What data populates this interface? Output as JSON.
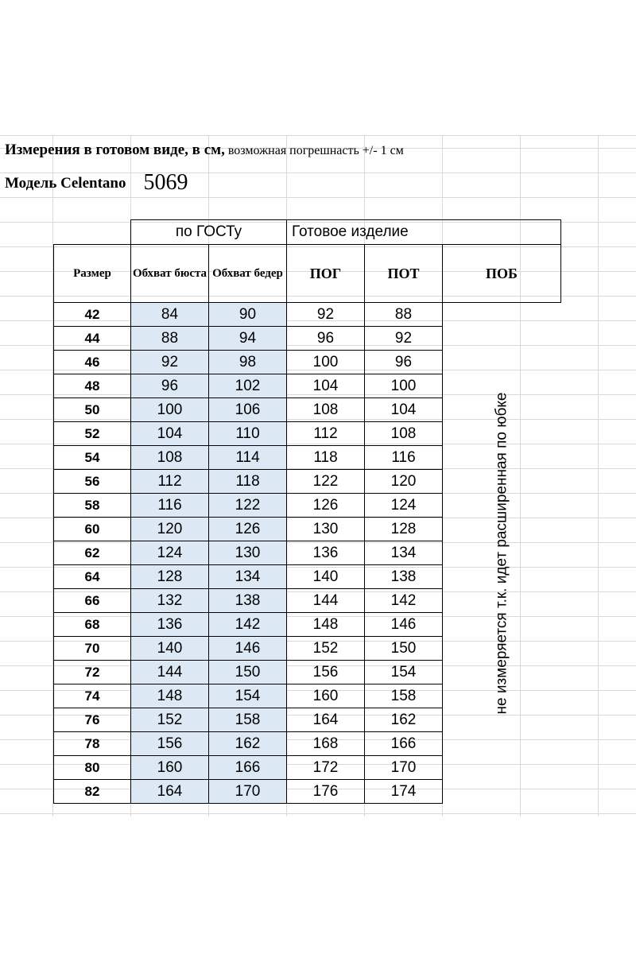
{
  "title_line1": {
    "main": "Измерения в готовом виде, в  см,",
    "note": "возможная погрешнасть +/- 1 см"
  },
  "title_line2": {
    "model": "Модель Celentano",
    "number": "5069"
  },
  "table": {
    "group_gost": "по ГОСТу",
    "group_ready": "Готовое изделие",
    "headers": {
      "size": "Размер",
      "bust": "Обхват бюста",
      "hips": "Обхват бедер",
      "pog": "ПОГ",
      "pot": "ПОТ",
      "pob": "ПОБ"
    },
    "pob_note": "не измеряется т.к. идет расширенная по юбке",
    "rows": [
      {
        "size": "42",
        "bust": "84",
        "hips": "90",
        "pog": "92",
        "pot": "88"
      },
      {
        "size": "44",
        "bust": "88",
        "hips": "94",
        "pog": "96",
        "pot": "92"
      },
      {
        "size": "46",
        "bust": "92",
        "hips": "98",
        "pog": "100",
        "pot": "96"
      },
      {
        "size": "48",
        "bust": "96",
        "hips": "102",
        "pog": "104",
        "pot": "100"
      },
      {
        "size": "50",
        "bust": "100",
        "hips": "106",
        "pog": "108",
        "pot": "104"
      },
      {
        "size": "52",
        "bust": "104",
        "hips": "110",
        "pog": "112",
        "pot": "108"
      },
      {
        "size": "54",
        "bust": "108",
        "hips": "114",
        "pog": "118",
        "pot": "116"
      },
      {
        "size": "56",
        "bust": "112",
        "hips": "118",
        "pog": "122",
        "pot": "120"
      },
      {
        "size": "58",
        "bust": "116",
        "hips": "122",
        "pog": "126",
        "pot": "124"
      },
      {
        "size": "60",
        "bust": "120",
        "hips": "126",
        "pog": "130",
        "pot": "128"
      },
      {
        "size": "62",
        "bust": "124",
        "hips": "130",
        "pog": "136",
        "pot": "134"
      },
      {
        "size": "64",
        "bust": "128",
        "hips": "134",
        "pog": "140",
        "pot": "138"
      },
      {
        "size": "66",
        "bust": "132",
        "hips": "138",
        "pog": "144",
        "pot": "142"
      },
      {
        "size": "68",
        "bust": "136",
        "hips": "142",
        "pog": "148",
        "pot": "146"
      },
      {
        "size": "70",
        "bust": "140",
        "hips": "146",
        "pog": "152",
        "pot": "150"
      },
      {
        "size": "72",
        "bust": "144",
        "hips": "150",
        "pog": "156",
        "pot": "154"
      },
      {
        "size": "74",
        "bust": "148",
        "hips": "154",
        "pog": "160",
        "pot": "158"
      },
      {
        "size": "76",
        "bust": "152",
        "hips": "158",
        "pog": "164",
        "pot": "162"
      },
      {
        "size": "78",
        "bust": "156",
        "hips": "162",
        "pog": "168",
        "pot": "166"
      },
      {
        "size": "80",
        "bust": "160",
        "hips": "166",
        "pog": "172",
        "pot": "170"
      },
      {
        "size": "82",
        "bust": "164",
        "hips": "170",
        "pog": "176",
        "pot": "174"
      }
    ]
  },
  "colors": {
    "shade": "#dce9f5",
    "grid": "#d9d9d9",
    "border": "#000000"
  }
}
